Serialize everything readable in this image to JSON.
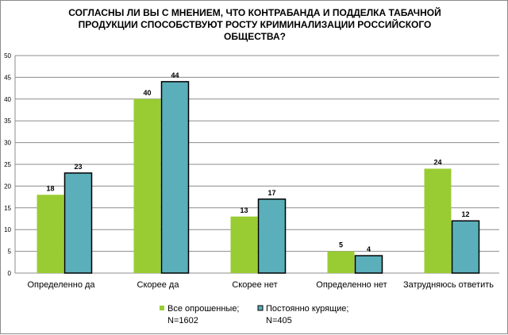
{
  "chart_data": {
    "type": "bar",
    "title_lines": [
      "СОГЛАСНЫ  ЛИ ВЫ С МНЕНИЕМ,  ЧТО КОНТРАБАНДА  И ПОДДЕЛКА  ТАБАЧНОЙ",
      "ПРОДУКЦИИ СПОСОБСТВУЮТ РОСТУ КРИМИНАЛИЗАЦИИ РОССИЙСКОГО",
      "ОБЩЕСТВА?"
    ],
    "categories": [
      "Определенно да",
      "Скорее да",
      "Скорее нет",
      "Определенно нет",
      "Затрудняюсь ответить"
    ],
    "series": [
      {
        "name": "Все опрошенные;\nN=1602",
        "legend_lines": [
          "Все опрошенные;",
          "N=1602"
        ],
        "values": [
          18,
          40,
          13,
          5,
          24
        ],
        "color": "#99cc33"
      },
      {
        "name": "Постоянно курящие;\nN=405",
        "legend_lines": [
          "Постоянно курящие;",
          "N=405"
        ],
        "values": [
          23,
          44,
          17,
          4,
          12
        ],
        "color": "#5aafba"
      }
    ],
    "ylim": [
      0,
      50
    ],
    "yticks": [
      0,
      5,
      10,
      15,
      20,
      25,
      30,
      35,
      40,
      45,
      50
    ],
    "grid": true,
    "legend_position": "bottom"
  }
}
